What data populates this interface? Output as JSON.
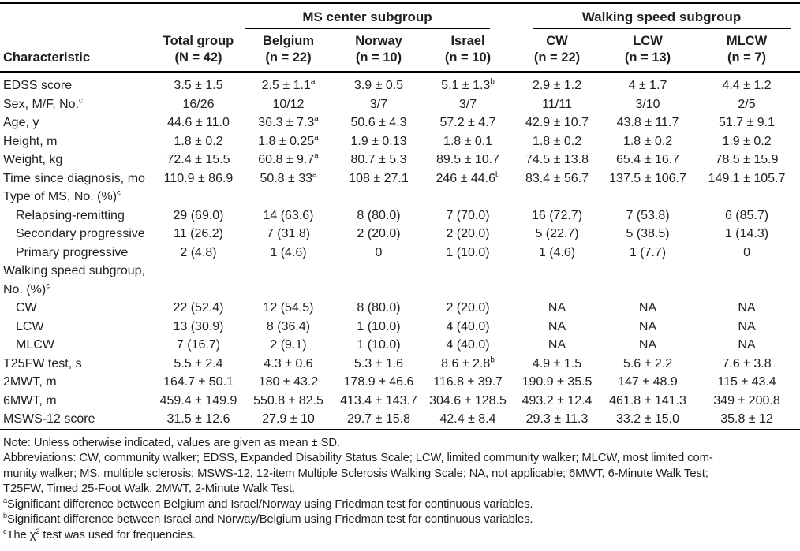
{
  "table": {
    "spanners": [
      {
        "label": "MS center subgroup",
        "span": 3
      },
      {
        "label": "Walking speed subgroup",
        "span": 3
      }
    ],
    "columns": [
      {
        "line1": "Characteristic",
        "line2": ""
      },
      {
        "line1": "Total group",
        "line2": "(N = 42)"
      },
      {
        "line1": "Belgium",
        "line2": "(n = 22)"
      },
      {
        "line1": "Norway",
        "line2": "(n = 10)"
      },
      {
        "line1": "Israel",
        "line2": "(n = 10)"
      },
      {
        "line1": "CW",
        "line2": "(n = 22)"
      },
      {
        "line1": "LCW",
        "line2": "(n = 13)"
      },
      {
        "line1": "MLCW",
        "line2": "(n = 7)"
      }
    ],
    "rows": [
      {
        "label": "EDSS score",
        "indent": false,
        "section": false,
        "values": [
          "3.5 ± 1.5",
          "2.5 ± 1.1^{a}",
          "3.9 ± 0.5",
          "5.1 ± 1.3^{b}",
          "2.9 ± 1.2",
          "4 ± 1.7",
          "4.4 ± 1.2"
        ]
      },
      {
        "label": "Sex, M/F, No.^{c}",
        "indent": false,
        "section": false,
        "values": [
          "16/26",
          "10/12",
          "3/7",
          "3/7",
          "11/11",
          "3/10",
          "2/5"
        ]
      },
      {
        "label": "Age, y",
        "indent": false,
        "section": false,
        "values": [
          "44.6 ± 11.0",
          "36.3 ± 7.3^{a}",
          "50.6 ± 4.3",
          "57.2 ± 4.7",
          "42.9 ± 10.7",
          "43.8 ± 11.7",
          "51.7 ± 9.1"
        ]
      },
      {
        "label": "Height, m",
        "indent": false,
        "section": false,
        "values": [
          "1.8 ± 0.2",
          "1.8 ± 0.25^{a}",
          "1.9 ± 0.13",
          "1.8 ± 0.1",
          "1.8 ± 0.2",
          "1.8 ± 0.2",
          "1.9 ± 0.2"
        ]
      },
      {
        "label": "Weight, kg",
        "indent": false,
        "section": false,
        "values": [
          "72.4 ± 15.5",
          "60.8 ± 9.7^{a}",
          "80.7 ± 5.3",
          "89.5 ± 10.7",
          "74.5 ± 13.8",
          "65.4 ± 16.7",
          "78.5 ± 15.9"
        ]
      },
      {
        "label": "Time since diagnosis, mo",
        "indent": false,
        "section": false,
        "values": [
          "110.9 ± 86.9",
          "50.8 ± 33^{a}",
          "108 ± 27.1",
          "246 ± 44.6^{b}",
          "83.4 ± 56.7",
          "137.5 ± 106.7",
          "149.1 ± 105.7"
        ]
      },
      {
        "label": "Type of MS, No. (%)^{c}",
        "indent": false,
        "section": true,
        "values": [
          "",
          "",
          "",
          "",
          "",
          "",
          ""
        ]
      },
      {
        "label": "Relapsing-remitting",
        "indent": true,
        "section": false,
        "values": [
          "29 (69.0)",
          "14 (63.6)",
          "8 (80.0)",
          "7 (70.0)",
          "16 (72.7)",
          "7 (53.8)",
          "6 (85.7)"
        ]
      },
      {
        "label": "Secondary progressive",
        "indent": true,
        "section": false,
        "values": [
          "11 (26.2)",
          "7 (31.8)",
          "2 (20.0)",
          "2 (20.0)",
          "5 (22.7)",
          "5 (38.5)",
          "1 (14.3)"
        ]
      },
      {
        "label": "Primary progressive",
        "indent": true,
        "section": false,
        "values": [
          "2 (4.8)",
          "1 (4.6)",
          "0",
          "1 (10.0)",
          "1 (4.6)",
          "1 (7.7)",
          "0"
        ]
      },
      {
        "label": "Walking speed subgroup, No. (%)^{c}",
        "indent": false,
        "section": true,
        "values": [
          "",
          "",
          "",
          "",
          "",
          "",
          ""
        ]
      },
      {
        "label": "CW",
        "indent": true,
        "section": false,
        "values": [
          "22 (52.4)",
          "12 (54.5)",
          "8 (80.0)",
          "2 (20.0)",
          "NA",
          "NA",
          "NA"
        ]
      },
      {
        "label": "LCW",
        "indent": true,
        "section": false,
        "values": [
          "13 (30.9)",
          "8 (36.4)",
          "1 (10.0)",
          "4 (40.0)",
          "NA",
          "NA",
          "NA"
        ]
      },
      {
        "label": "MLCW",
        "indent": true,
        "section": false,
        "values": [
          "7 (16.7)",
          "2 (9.1)",
          "1 (10.0)",
          "4 (40.0)",
          "NA",
          "NA",
          "NA"
        ]
      },
      {
        "label": "T25FW test, s",
        "indent": false,
        "section": false,
        "values": [
          "5.5 ± 2.4",
          "4.3 ± 0.6",
          "5.3 ± 1.6",
          "8.6 ± 2.8^{b}",
          "4.9 ± 1.5",
          "5.6 ± 2.2",
          "7.6 ± 3.8"
        ]
      },
      {
        "label": "2MWT, m",
        "indent": false,
        "section": false,
        "values": [
          "164.7 ± 50.1",
          "180 ± 43.2",
          "178.9 ± 46.6",
          "116.8 ± 39.7",
          "190.9 ± 35.5",
          "147 ± 48.9",
          "115 ± 43.4"
        ]
      },
      {
        "label": "6MWT, m",
        "indent": false,
        "section": false,
        "values": [
          "459.4 ± 149.9",
          "550.8 ± 82.5",
          "413.4 ± 143.7",
          "304.6 ± 128.5",
          "493.2 ± 12.4",
          "461.8 ± 141.3",
          "349 ± 200.8"
        ]
      },
      {
        "label": "MSWS-12 score",
        "indent": false,
        "section": false,
        "values": [
          "31.5 ± 12.6",
          "27.9 ± 10",
          "29.7 ± 15.8",
          "42.4 ± 8.4",
          "29.3 ± 11.3",
          "33.2 ± 15.0",
          "35.8 ± 12"
        ]
      }
    ]
  },
  "footnotes": [
    "Note: Unless otherwise indicated, values are given as mean ± SD.",
    "Abbreviations: CW, community walker; EDSS, Expanded Disability Status Scale; LCW, limited community walker; MLCW, most limited com-",
    "munity walker; MS, multiple sclerosis; MSWS-12, 12-item Multiple Sclerosis Walking Scale; NA, not applicable; 6MWT, 6-Minute Walk Test;",
    "T25FW, Timed 25-Foot Walk; 2MWT, 2-Minute Walk Test.",
    "^{a}Significant difference between Belgium and Israel/Norway using Friedman test for continuous variables.",
    "^{b}Significant difference between Israel and Norway/Belgium using Friedman test for continuous variables.",
    "^{c}The χ^{2} test was used for frequencies."
  ]
}
